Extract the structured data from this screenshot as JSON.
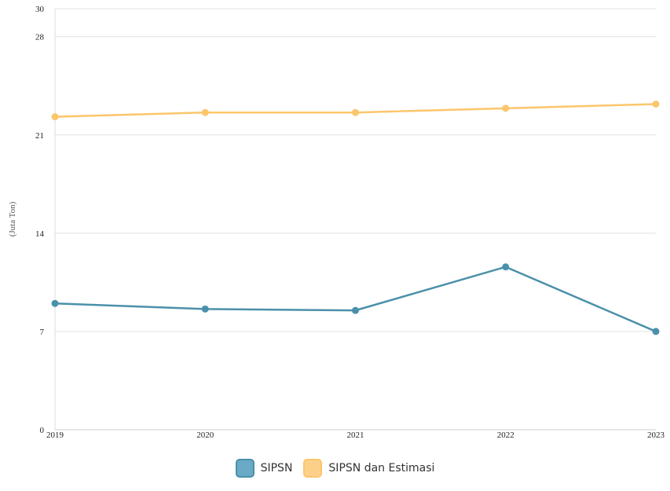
{
  "chart_data": {
    "type": "line",
    "categories": [
      "2019",
      "2020",
      "2021",
      "2022",
      "2023"
    ],
    "series": [
      {
        "name": "SIPSN",
        "values": [
          9.0,
          8.6,
          8.5,
          11.6,
          7.0
        ],
        "color": "#4a90ab",
        "fill": "#6aaac4"
      },
      {
        "name": "SIPSN dan Estimasi",
        "values": [
          22.3,
          22.6,
          22.6,
          22.9,
          23.2
        ],
        "color": "#fcc66c",
        "fill": "#fdd08a"
      }
    ],
    "yticks": [
      0,
      7,
      14,
      21,
      28,
      30
    ],
    "ylim": [
      0,
      30
    ],
    "ylabel": "(Juta Ton)",
    "xlabel": "",
    "grid": true,
    "legend_position": "bottom"
  }
}
